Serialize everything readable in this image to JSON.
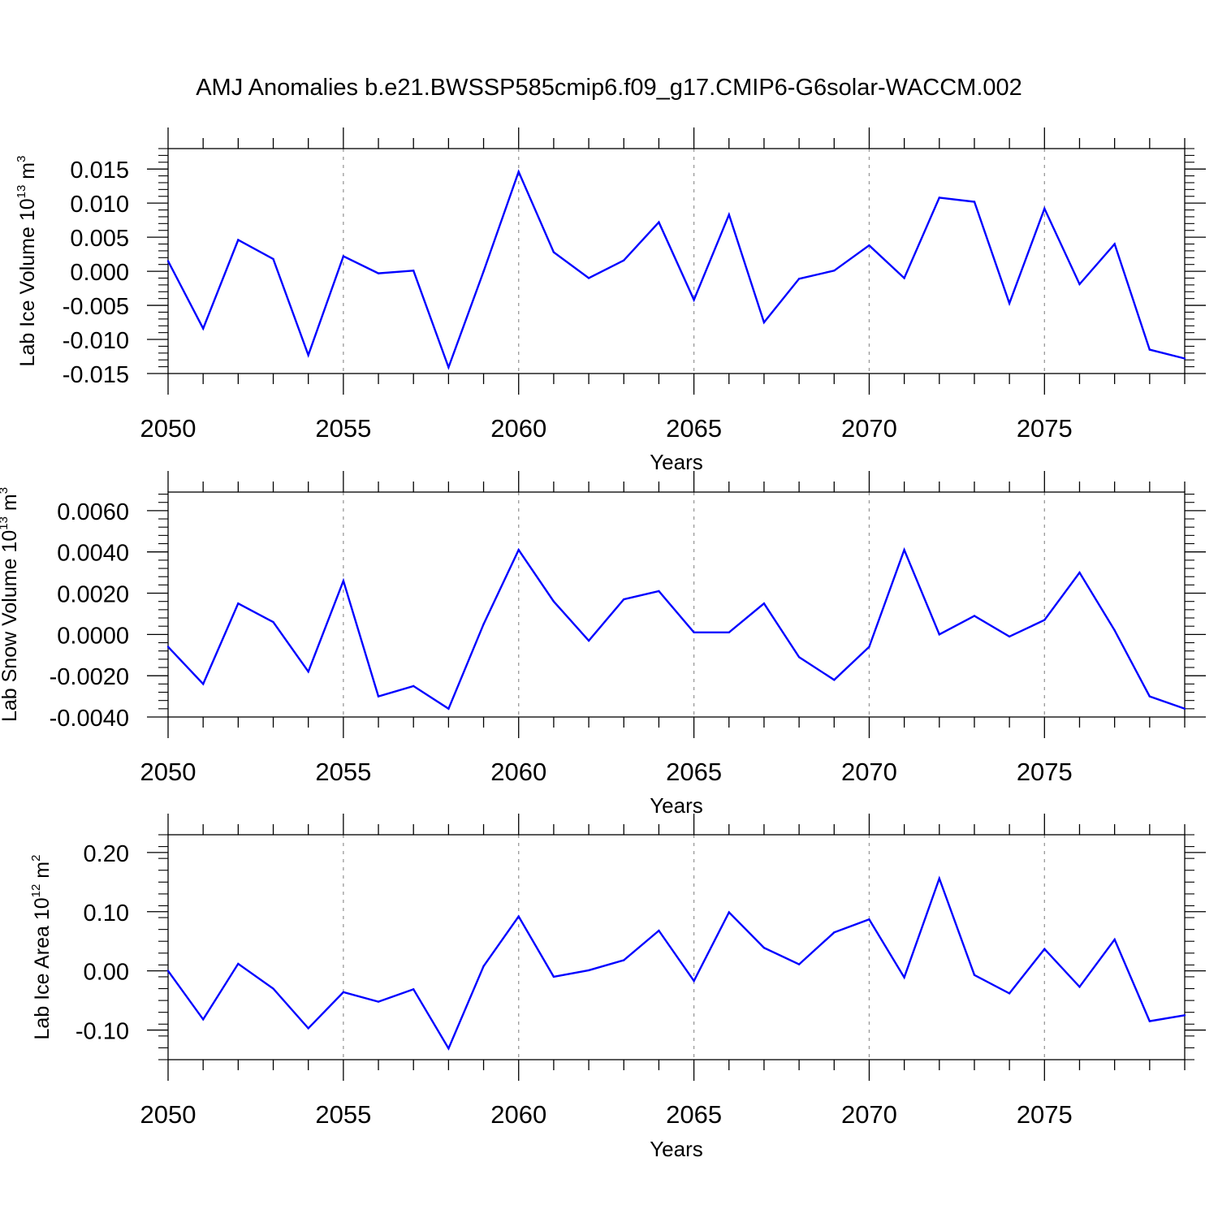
{
  "title": "AMJ Anomalies b.e21.BWSSP585cmip6.f09_g17.CMIP6-G6solar-WACCM.002",
  "colors": {
    "line": "#0000ff",
    "axis": "#000000",
    "grid": "#999999"
  },
  "chart_data": [
    {
      "type": "line",
      "xlabel": "Years",
      "ylabel_main": "Lab Ice Volume 10",
      "ylabel_exp": "13",
      "ylabel_unit": " m",
      "ylabel_unit_exp": "3",
      "xlim": [
        2050,
        2079
      ],
      "ylim": [
        -0.015,
        0.018
      ],
      "yticks": [
        -0.015,
        -0.01,
        -0.005,
        0.0,
        0.005,
        0.01,
        0.015
      ],
      "ytick_labels": [
        "-0.015",
        "-0.010",
        "-0.005",
        "0.000",
        "0.005",
        "0.010",
        "0.015"
      ],
      "xticks": [
        2050,
        2055,
        2060,
        2065,
        2070,
        2075
      ],
      "xtick_labels": [
        "2050",
        "2055",
        "2060",
        "2065",
        "2070",
        "2075"
      ],
      "grid_x": true,
      "x": [
        2050,
        2051,
        2052,
        2053,
        2054,
        2055,
        2056,
        2057,
        2058,
        2059,
        2060,
        2061,
        2062,
        2063,
        2064,
        2065,
        2066,
        2067,
        2068,
        2069,
        2070,
        2071,
        2072,
        2073,
        2074,
        2075,
        2076,
        2077,
        2078,
        2079
      ],
      "values": [
        0.0015,
        -0.0084,
        0.0046,
        0.0018,
        -0.0123,
        0.0022,
        -0.0003,
        0.0001,
        -0.0141,
        0.0,
        0.0146,
        0.0028,
        -0.001,
        0.0016,
        0.0072,
        -0.0042,
        0.0083,
        -0.0075,
        -0.0011,
        0.0001,
        0.0038,
        -0.001,
        0.0108,
        0.0102,
        -0.0047,
        0.0092,
        -0.0019,
        0.004,
        -0.0115,
        -0.0128
      ]
    },
    {
      "type": "line",
      "xlabel": "Years",
      "ylabel_main": "Lab Snow Volume 10",
      "ylabel_exp": "13",
      "ylabel_unit": " m",
      "ylabel_unit_exp": "3",
      "xlim": [
        2050,
        2079
      ],
      "ylim": [
        -0.004,
        0.0069
      ],
      "yticks": [
        -0.004,
        -0.002,
        0.0,
        0.002,
        0.004,
        0.006
      ],
      "ytick_labels": [
        "-0.0040",
        "-0.0020",
        "0.0000",
        "0.0020",
        "0.0040",
        "0.0060"
      ],
      "xticks": [
        2050,
        2055,
        2060,
        2065,
        2070,
        2075
      ],
      "xtick_labels": [
        "2050",
        "2055",
        "2060",
        "2065",
        "2070",
        "2075"
      ],
      "grid_x": true,
      "x": [
        2050,
        2051,
        2052,
        2053,
        2054,
        2055,
        2056,
        2057,
        2058,
        2059,
        2060,
        2061,
        2062,
        2063,
        2064,
        2065,
        2066,
        2067,
        2068,
        2069,
        2070,
        2071,
        2072,
        2073,
        2074,
        2075,
        2076,
        2077,
        2078,
        2079
      ],
      "values": [
        -0.0006,
        -0.0024,
        0.0015,
        0.0006,
        -0.0018,
        0.0026,
        -0.003,
        -0.0025,
        -0.0036,
        0.0005,
        0.0041,
        0.0016,
        -0.0003,
        0.0017,
        0.0021,
        0.0001,
        0.0001,
        0.0015,
        -0.0011,
        -0.0022,
        -0.0006,
        0.0041,
        0.0,
        0.0009,
        -0.0001,
        0.0007,
        0.003,
        0.0002,
        -0.003,
        -0.0036
      ]
    },
    {
      "type": "line",
      "xlabel": "Years",
      "ylabel_main": "Lab Ice Area 10",
      "ylabel_exp": "12",
      "ylabel_unit": " m",
      "ylabel_unit_exp": "2",
      "xlim": [
        2050,
        2079
      ],
      "ylim": [
        -0.15,
        0.23
      ],
      "yticks": [
        -0.1,
        0.0,
        0.1,
        0.2
      ],
      "ytick_labels": [
        "-0.10",
        "0.00",
        "0.10",
        "0.20"
      ],
      "xticks": [
        2050,
        2055,
        2060,
        2065,
        2070,
        2075
      ],
      "xtick_labels": [
        "2050",
        "2055",
        "2060",
        "2065",
        "2070",
        "2075"
      ],
      "grid_x": true,
      "x": [
        2050,
        2051,
        2052,
        2053,
        2054,
        2055,
        2056,
        2057,
        2058,
        2059,
        2060,
        2061,
        2062,
        2063,
        2064,
        2065,
        2066,
        2067,
        2068,
        2069,
        2070,
        2071,
        2072,
        2073,
        2074,
        2075,
        2076,
        2077,
        2078,
        2079
      ],
      "values": [
        0.0,
        -0.082,
        0.012,
        -0.03,
        -0.097,
        -0.036,
        -0.052,
        -0.031,
        -0.131,
        0.008,
        0.092,
        -0.01,
        0.001,
        0.018,
        0.068,
        -0.017,
        0.099,
        0.039,
        0.011,
        0.065,
        0.087,
        -0.011,
        0.156,
        -0.007,
        -0.038,
        0.037,
        -0.027,
        0.053,
        -0.085,
        -0.075
      ]
    }
  ]
}
